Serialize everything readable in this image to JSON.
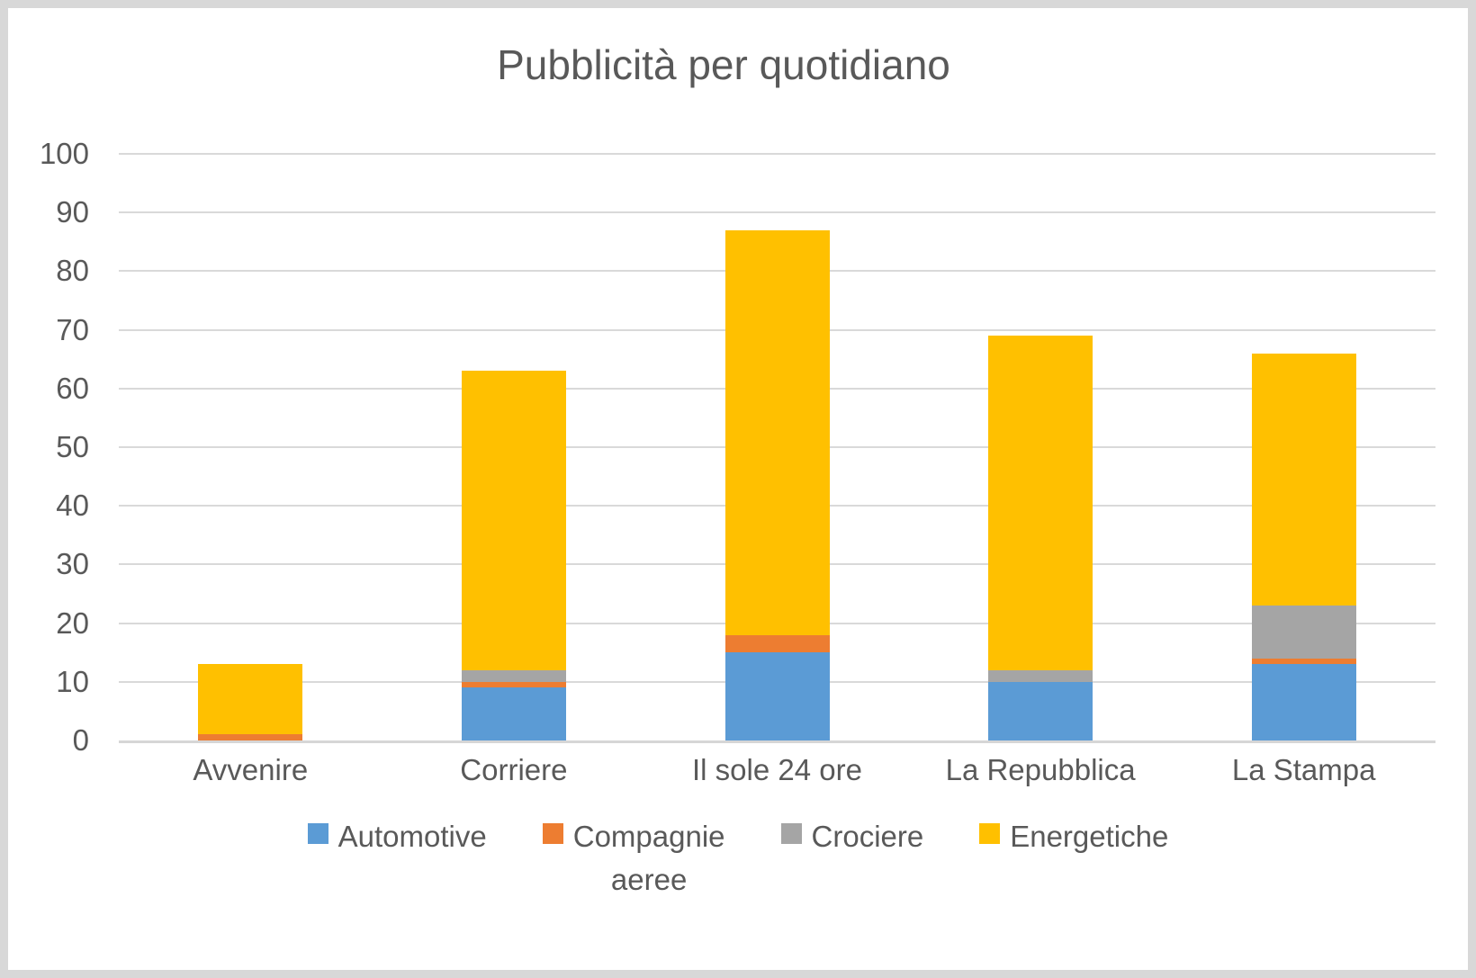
{
  "chart_data": {
    "type": "bar",
    "stacked": true,
    "title": "Pubblicità per quotidiano",
    "categories": [
      "Avvenire",
      "Corriere",
      "Il sole 24 ore",
      "La Repubblica",
      "La Stampa"
    ],
    "series": [
      {
        "name": "Automotive",
        "color": "#5B9BD5",
        "values": [
          0,
          9,
          15,
          10,
          13
        ],
        "legend_lines": [
          "Automotive"
        ]
      },
      {
        "name": "Compagnie aeree",
        "color": "#ED7D31",
        "values": [
          1,
          1,
          3,
          0,
          1
        ],
        "legend_lines": [
          "Compagnie",
          "aeree"
        ]
      },
      {
        "name": "Crociere",
        "color": "#A5A5A5",
        "values": [
          0,
          2,
          0,
          2,
          9
        ],
        "legend_lines": [
          "Crociere"
        ]
      },
      {
        "name": "Energetiche",
        "color": "#FFC000",
        "values": [
          12,
          51,
          69,
          57,
          43
        ],
        "legend_lines": [
          "Energetiche"
        ]
      }
    ],
    "ylim": [
      0,
      100
    ],
    "ytick_step": 10,
    "ytick_labels": [
      "0",
      "10",
      "20",
      "30",
      "40",
      "50",
      "60",
      "70",
      "80",
      "90",
      "100"
    ],
    "xlabel": "",
    "ylabel": "",
    "grid": true,
    "legend_position": "bottom",
    "colors": {
      "text": "#595959",
      "gridline": "#D9D9D9",
      "frame_border": "#D8D8D8",
      "background": "#FFFFFF"
    }
  }
}
